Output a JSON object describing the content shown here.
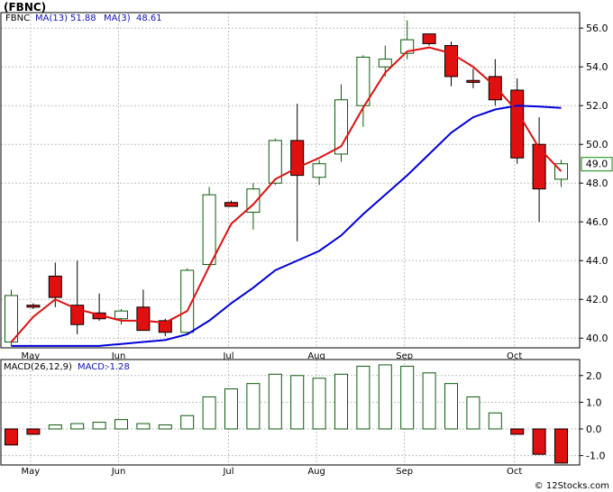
{
  "header": {
    "symbol": "(FBNC)",
    "ticker": "FBNC",
    "ma13_label": "MA(13)",
    "ma13_value": "51.88",
    "ma3_label": "MA(3)",
    "ma3_value": "48.61",
    "macd_params": "MACD(26,12,9)",
    "macd_label": "MACD:",
    "macd_value": "-1.28",
    "credit": "© 12Stocks.com"
  },
  "colors": {
    "up": "#0a5c0a",
    "down_fill": "#e01010",
    "ma13": "#0000dd",
    "ma3": "#e01010",
    "grid": "#bfbfbf",
    "price_tag_border": "#0a8a0a"
  },
  "chart_data": [
    {
      "type": "candlestick",
      "title": "(FBNC)",
      "x_tick_labels": [
        "May",
        "Jun",
        "Jul",
        "Aug",
        "Sep",
        "Oct"
      ],
      "x_tick_index": [
        1,
        5,
        10,
        14,
        18,
        23
      ],
      "y_ticks": [
        40.0,
        42.0,
        44.0,
        46.0,
        48.0,
        50.0,
        52.0,
        54.0,
        56.0
      ],
      "ylim": [
        39.5,
        56.8
      ],
      "last_price_label": "49.0",
      "candles": [
        {
          "o": 39.8,
          "h": 42.5,
          "l": 39.6,
          "c": 42.2
        },
        {
          "o": 41.7,
          "h": 41.8,
          "l": 41.5,
          "c": 41.6
        },
        {
          "o": 43.2,
          "h": 43.9,
          "l": 41.6,
          "c": 42.1
        },
        {
          "o": 41.7,
          "h": 44.0,
          "l": 40.2,
          "c": 40.7
        },
        {
          "o": 41.3,
          "h": 42.3,
          "l": 40.9,
          "c": 41.0
        },
        {
          "o": 41.0,
          "h": 41.5,
          "l": 40.7,
          "c": 41.4
        },
        {
          "o": 41.6,
          "h": 42.5,
          "l": 40.4,
          "c": 40.4
        },
        {
          "o": 40.9,
          "h": 41.0,
          "l": 40.1,
          "c": 40.3
        },
        {
          "o": 40.3,
          "h": 43.6,
          "l": 40.2,
          "c": 43.5
        },
        {
          "o": 43.8,
          "h": 47.8,
          "l": 43.7,
          "c": 47.4
        },
        {
          "o": 47.0,
          "h": 47.1,
          "l": 46.9,
          "c": 46.8
        },
        {
          "o": 46.5,
          "h": 48.0,
          "l": 45.6,
          "c": 47.7
        },
        {
          "o": 48.0,
          "h": 50.3,
          "l": 47.9,
          "c": 50.2
        },
        {
          "o": 50.2,
          "h": 52.1,
          "l": 45.0,
          "c": 48.4
        },
        {
          "o": 48.3,
          "h": 49.2,
          "l": 47.9,
          "c": 49.0
        },
        {
          "o": 49.5,
          "h": 53.1,
          "l": 49.1,
          "c": 52.3
        },
        {
          "o": 52.0,
          "h": 54.6,
          "l": 50.9,
          "c": 54.5
        },
        {
          "o": 54.0,
          "h": 55.1,
          "l": 53.5,
          "c": 54.4
        },
        {
          "o": 54.7,
          "h": 56.4,
          "l": 54.4,
          "c": 55.4
        },
        {
          "o": 55.7,
          "h": 55.7,
          "l": 55.1,
          "c": 55.2
        },
        {
          "o": 55.1,
          "h": 55.3,
          "l": 53.0,
          "c": 53.5
        },
        {
          "o": 53.3,
          "h": 53.9,
          "l": 52.9,
          "c": 53.2
        },
        {
          "o": 53.5,
          "h": 54.4,
          "l": 52.0,
          "c": 52.3
        },
        {
          "o": 52.8,
          "h": 53.4,
          "l": 49.0,
          "c": 49.3
        },
        {
          "o": 50.0,
          "h": 51.4,
          "l": 46.0,
          "c": 47.7
        },
        {
          "o": 48.2,
          "h": 49.2,
          "l": 47.8,
          "c": 49.0
        }
      ],
      "series": [
        {
          "name": "MA(13)",
          "values": [
            39.6,
            39.6,
            39.6,
            39.6,
            39.6,
            39.7,
            39.8,
            39.9,
            40.2,
            40.9,
            41.8,
            42.6,
            43.5,
            44.0,
            44.5,
            45.3,
            46.4,
            47.4,
            48.4,
            49.5,
            50.6,
            51.4,
            51.8,
            52.0,
            51.95,
            51.88
          ]
        },
        {
          "name": "MA(3)",
          "values": [
            39.8,
            41.1,
            42.0,
            41.5,
            41.2,
            40.9,
            40.9,
            40.8,
            41.4,
            43.7,
            45.9,
            46.9,
            48.2,
            48.8,
            49.3,
            49.9,
            51.9,
            53.7,
            54.8,
            55.0,
            54.7,
            54.0,
            53.0,
            51.7,
            49.8,
            48.61
          ]
        }
      ]
    },
    {
      "type": "bar",
      "title": "MACD(26,12,9)",
      "x_tick_labels": [
        "May",
        "Jun",
        "Jul",
        "Aug",
        "Sep",
        "Oct"
      ],
      "x_tick_index": [
        1,
        5,
        10,
        14,
        18,
        23
      ],
      "y_ticks": [
        -1.0,
        0.0,
        1.0,
        2.0
      ],
      "ylim": [
        -1.35,
        2.6
      ],
      "values": [
        -0.6,
        -0.2,
        0.15,
        0.2,
        0.25,
        0.35,
        0.2,
        0.15,
        0.5,
        1.2,
        1.5,
        1.7,
        2.05,
        2.0,
        1.9,
        2.05,
        2.35,
        2.4,
        2.35,
        2.1,
        1.7,
        1.2,
        0.6,
        -0.2,
        -0.95,
        -1.28
      ]
    }
  ]
}
